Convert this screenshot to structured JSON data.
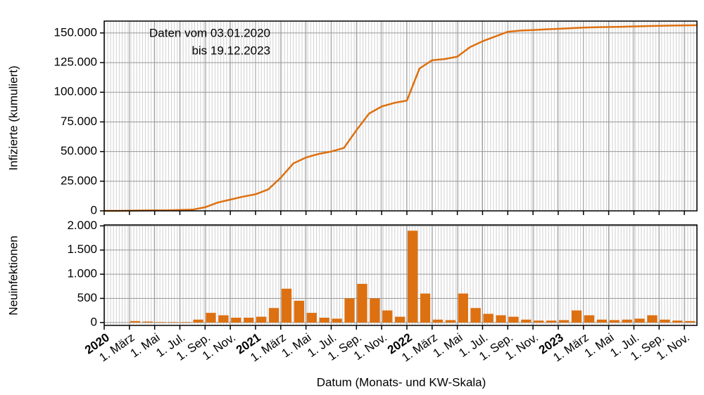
{
  "chart_data": [
    {
      "type": "line",
      "ylabel": "Infizierte (kumuliert)",
      "annotations": [
        "Daten vom 03.01.2020",
        "bis 19.12.2023"
      ],
      "color": "#dd7010",
      "x": [
        "2020-01",
        "2020-02",
        "2020-03",
        "2020-04",
        "2020-05",
        "2020-06",
        "2020-07",
        "2020-08",
        "2020-09",
        "2020-10",
        "2020-11",
        "2020-12",
        "2021-01",
        "2021-02",
        "2021-03",
        "2021-04",
        "2021-05",
        "2021-06",
        "2021-07",
        "2021-08",
        "2021-09",
        "2021-10",
        "2021-11",
        "2021-12",
        "2022-01",
        "2022-02",
        "2022-03",
        "2022-04",
        "2022-05",
        "2022-06",
        "2022-07",
        "2022-08",
        "2022-09",
        "2022-10",
        "2022-11",
        "2022-12",
        "2023-01",
        "2023-02",
        "2023-03",
        "2023-04",
        "2023-05",
        "2023-06",
        "2023-07",
        "2023-08",
        "2023-09",
        "2023-10",
        "2023-11",
        "2023-12"
      ],
      "values": [
        0,
        0,
        100,
        300,
        400,
        500,
        700,
        1000,
        3000,
        7000,
        9500,
        12000,
        14000,
        18000,
        28000,
        40000,
        45000,
        48000,
        50000,
        53000,
        68000,
        82000,
        88000,
        91000,
        93000,
        120000,
        127000,
        128000,
        130000,
        138000,
        143000,
        147000,
        151000,
        152000,
        152500,
        153000,
        153500,
        154000,
        154500,
        154800,
        155000,
        155200,
        155500,
        155800,
        156000,
        156200,
        156400,
        156500
      ],
      "xlim": [
        "2020-01",
        "2023-12"
      ],
      "ylim": [
        0,
        160000
      ],
      "yticks": [
        0,
        {
          "value": 25000,
          "label": "25.000"
        },
        {
          "value": 50000,
          "label": "50.000"
        },
        {
          "value": 75000,
          "label": "75.000"
        },
        {
          "value": 100000,
          "label": "100.000"
        },
        {
          "value": 125000,
          "label": "125.000"
        },
        {
          "value": 150000,
          "label": "150.000"
        }
      ],
      "grid": true
    },
    {
      "type": "bar",
      "ylabel": "Neuinfektionen",
      "xlabel": "Datum (Monats- und KW-Skala)",
      "color": "#dd7010",
      "x": [
        "2020-01",
        "2020-02",
        "2020-03",
        "2020-04",
        "2020-05",
        "2020-06",
        "2020-07",
        "2020-08",
        "2020-09",
        "2020-10",
        "2020-11",
        "2020-12",
        "2021-01",
        "2021-02",
        "2021-03",
        "2021-04",
        "2021-05",
        "2021-06",
        "2021-07",
        "2021-08",
        "2021-09",
        "2021-10",
        "2021-11",
        "2021-12",
        "2022-01",
        "2022-02",
        "2022-03",
        "2022-04",
        "2022-05",
        "2022-06",
        "2022-07",
        "2022-08",
        "2022-09",
        "2022-10",
        "2022-11",
        "2022-12",
        "2023-01",
        "2023-02",
        "2023-03",
        "2023-04",
        "2023-05",
        "2023-06",
        "2023-07",
        "2023-08",
        "2023-09",
        "2023-10",
        "2023-11",
        "2023-12"
      ],
      "values": [
        0,
        0,
        30,
        20,
        10,
        10,
        10,
        60,
        200,
        150,
        100,
        100,
        120,
        300,
        700,
        450,
        200,
        100,
        80,
        500,
        800,
        500,
        250,
        120,
        1900,
        600,
        60,
        50,
        600,
        300,
        180,
        150,
        120,
        60,
        40,
        40,
        50,
        250,
        150,
        60,
        50,
        60,
        80,
        150,
        60,
        40,
        30,
        20
      ],
      "xlim": [
        "2020-01",
        "2023-12"
      ],
      "ylim": [
        -60,
        2020
      ],
      "yticks": [
        0,
        500,
        {
          "value": 1000,
          "label": "1.000"
        },
        {
          "value": 1500,
          "label": "1.500"
        },
        {
          "value": 2000,
          "label": "2.000"
        }
      ],
      "xticks": [
        {
          "value": "2020-01",
          "label": "2020"
        },
        {
          "value": "2020-03",
          "label": "1. März"
        },
        {
          "value": "2020-05",
          "label": "1. Mai"
        },
        {
          "value": "2020-07",
          "label": "1. Jul."
        },
        {
          "value": "2020-09",
          "label": "1. Sep."
        },
        {
          "value": "2020-11",
          "label": "1. Nov."
        },
        {
          "value": "2021-01",
          "label": "2021"
        },
        {
          "value": "2021-03",
          "label": "1. März"
        },
        {
          "value": "2021-05",
          "label": "1. Mai"
        },
        {
          "value": "2021-07",
          "label": "1. Jul."
        },
        {
          "value": "2021-09",
          "label": "1. Sep."
        },
        {
          "value": "2021-11",
          "label": "1. Nov."
        },
        {
          "value": "2022-01",
          "label": "2022"
        },
        {
          "value": "2022-03",
          "label": "1. März"
        },
        {
          "value": "2022-05",
          "label": "1. Mai"
        },
        {
          "value": "2022-07",
          "label": "1. Jul."
        },
        {
          "value": "2022-09",
          "label": "1. Sep."
        },
        {
          "value": "2022-11",
          "label": "1. Nov."
        },
        {
          "value": "2023-01",
          "label": "2023"
        },
        {
          "value": "2023-03",
          "label": "1. März"
        },
        {
          "value": "2023-05",
          "label": "1. Mai"
        },
        {
          "value": "2023-07",
          "label": "1. Jul."
        },
        {
          "value": "2023-09",
          "label": "1. Sep."
        },
        {
          "value": "2023-11",
          "label": "1. Nov."
        }
      ],
      "grid": true
    }
  ]
}
